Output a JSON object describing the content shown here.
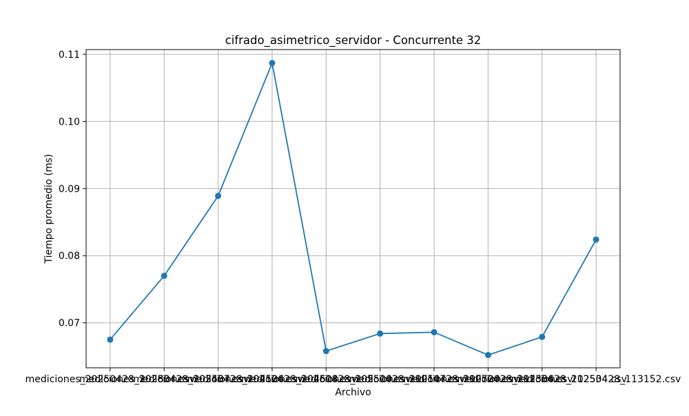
{
  "chart_data": {
    "type": "line",
    "title": "cifrado_asimetrico_servidor - Concurrente 32",
    "xlabel": "Archivo",
    "ylabel": "Tiempo promedio (ms)",
    "categories": [
      "mediciones_20250428_102834.csv",
      "mediciones_20250428_103457.csv",
      "mediciones_20250428_104126.csv",
      "mediciones_20250428_104618.csv",
      "mediciones_20250428_105510.csv",
      "mediciones_20250428_110147.csv",
      "mediciones_20250428_110720.csv",
      "mediciones_20250428_111356.csv",
      "mediciones_20250428_112534.csv",
      "mediciones_20250428_113152.csv"
    ],
    "values": [
      0.0675,
      0.077,
      0.0889,
      0.1087,
      0.0658,
      0.0684,
      0.0686,
      0.0652,
      0.0679,
      0.0824
    ],
    "ylim": [
      0.0633,
      0.1107
    ],
    "yticks": [
      0.07,
      0.08,
      0.09,
      0.1,
      0.11
    ],
    "ytick_labels": [
      "0.07",
      "0.08",
      "0.09",
      "0.10",
      "0.11"
    ],
    "grid": true,
    "line_color": "#1f77b4",
    "marker": "circle"
  }
}
